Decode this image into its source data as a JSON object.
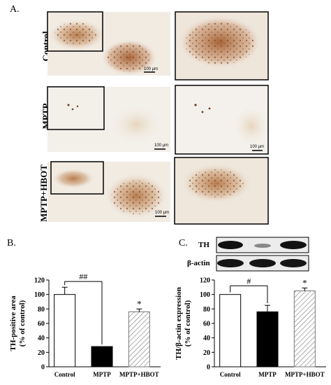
{
  "panel_a": {
    "letter": "A.",
    "rows": [
      {
        "label": "Control",
        "scale_main": "100 μm"
      },
      {
        "label": "MPTP",
        "scale_main": "100 μm",
        "scale_zoom": "100 μm"
      },
      {
        "label": "MPTP+HBOT",
        "scale_main": "100 μm"
      }
    ]
  },
  "panel_b": {
    "letter": "B.",
    "sig_label": "##",
    "star": "*"
  },
  "panel_c": {
    "letter": "C.",
    "blot_labels": [
      "TH",
      "β-actin"
    ],
    "sig_label": "#",
    "star": "*"
  },
  "chart_data": [
    {
      "type": "bar",
      "categories": [
        "Control",
        "MPTP",
        "MPTP+HBOT"
      ],
      "values": [
        100,
        28,
        76
      ],
      "errors": [
        10,
        0,
        4
      ],
      "ylabel": "TH-positive area\n(% of control)",
      "ylim": [
        0,
        120
      ],
      "yticks": [
        0,
        20,
        40,
        60,
        80,
        100,
        120
      ],
      "bar_styles": [
        "white",
        "black",
        "hatched"
      ],
      "annotations": [
        "##",
        "*"
      ]
    },
    {
      "type": "bar",
      "categories": [
        "Control",
        "MPTP",
        "MPTP+HBOT"
      ],
      "values": [
        100,
        76,
        105
      ],
      "errors": [
        0,
        9,
        4
      ],
      "ylabel": "TH/β-actin expression\n(% of control)",
      "ylim": [
        0,
        120
      ],
      "yticks": [
        0,
        20,
        40,
        60,
        80,
        100,
        120
      ],
      "bar_styles": [
        "white",
        "black",
        "hatched"
      ],
      "annotations": [
        "#",
        "*"
      ]
    }
  ]
}
